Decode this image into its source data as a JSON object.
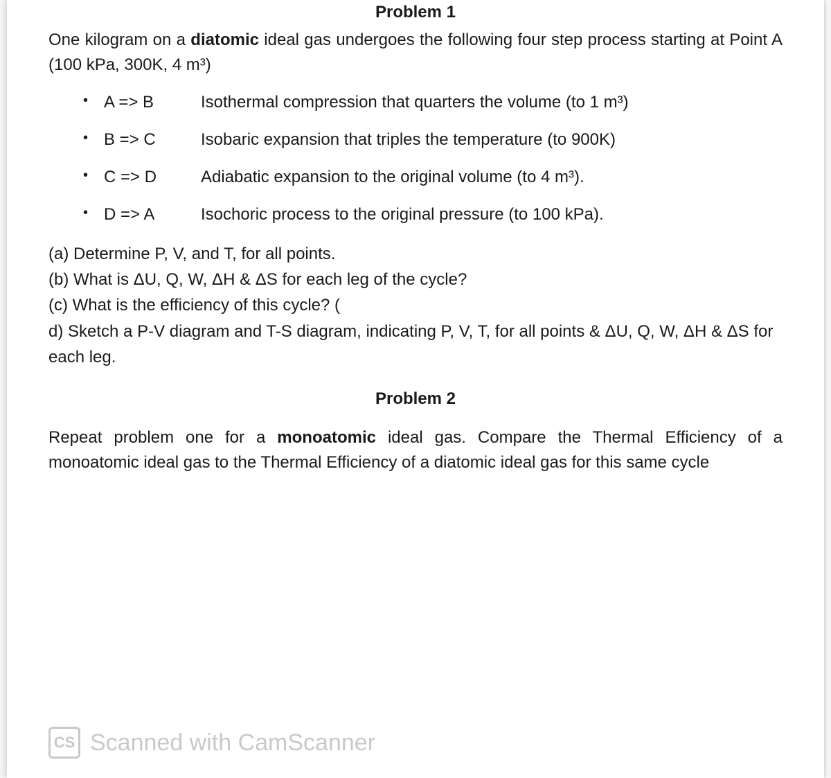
{
  "problem1": {
    "title": "Problem 1",
    "intro_part1": "One kilogram on a ",
    "intro_bold": "diatomic",
    "intro_part2": " ideal gas undergoes the following four step process starting at Point A (100 kPa, 300K, 4 m³)",
    "steps": [
      {
        "code": "A => B",
        "desc": "Isothermal compression that quarters the volume (to 1 m³)"
      },
      {
        "code": "B => C",
        "desc": "Isobaric expansion that triples the temperature (to 900K)"
      },
      {
        "code": "C => D",
        "desc": "Adiabatic expansion to the original volume (to 4 m³)."
      },
      {
        "code": "D => A",
        "desc": "Isochoric process to the original pressure (to 100 kPa)."
      }
    ],
    "question_a": "(a) Determine P, V, and T, for all points.",
    "question_b": "(b) What is ΔU, Q, W, ΔH & ΔS for each leg of the cycle?",
    "question_c": "(c) What is the efficiency of this cycle? (",
    "question_d": "d) Sketch a P-V diagram and T-S diagram, indicating P, V, T, for all points & ΔU, Q, W, ΔH & ΔS for each leg."
  },
  "problem2": {
    "title": "Problem 2",
    "body_part1": "Repeat problem one for a ",
    "body_bold": "monoatomic",
    "body_part2": " ideal gas.  Compare the Thermal Efficiency of a monoatomic ideal gas to the Thermal Efficiency of a diatomic ideal gas for this same cycle"
  },
  "watermark": {
    "cs": "CS",
    "text": "Scanned with CamScanner"
  },
  "colors": {
    "text": "#1a1a1a",
    "background": "#ffffff",
    "watermark": "#888888"
  }
}
